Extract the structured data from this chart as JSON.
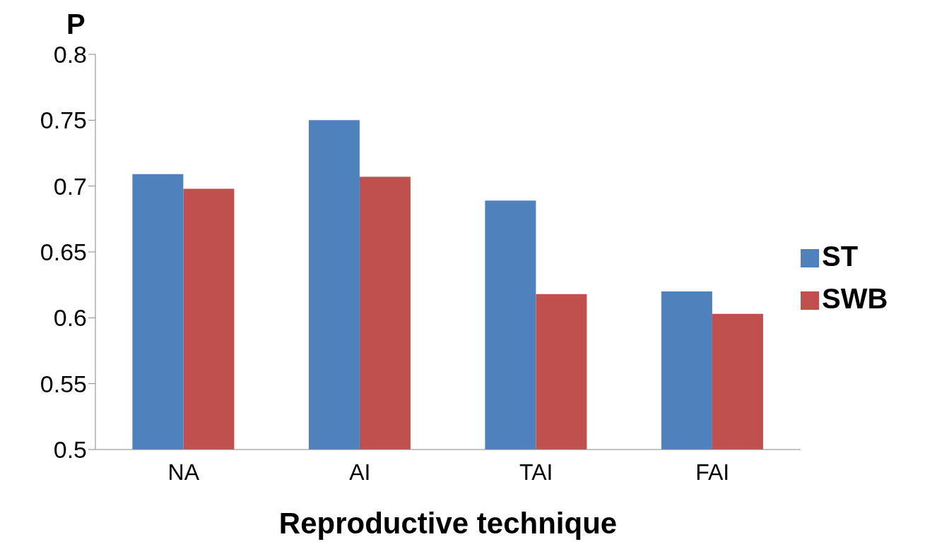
{
  "chart_data": {
    "type": "bar",
    "xlabel": "Reproductive technique",
    "ylabel": "P",
    "categories": [
      "NA",
      "AI",
      "TAI",
      "FAI"
    ],
    "series": [
      {
        "name": "ST",
        "color": "#4f81bd",
        "values": [
          0.709,
          0.75,
          0.689,
          0.62
        ]
      },
      {
        "name": "SWB",
        "color": "#c0504d",
        "values": [
          0.698,
          0.707,
          0.618,
          0.603
        ]
      }
    ],
    "ylim": [
      0.5,
      0.8
    ],
    "yticks": [
      0.5,
      0.55,
      0.6,
      0.65,
      0.7,
      0.75,
      0.8
    ],
    "grid": false,
    "legend": "right"
  }
}
